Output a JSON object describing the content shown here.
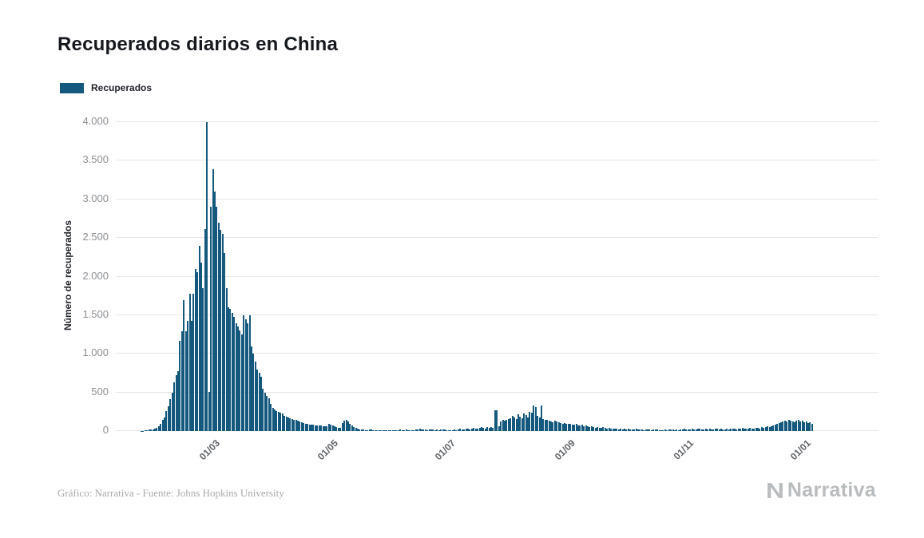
{
  "page": {
    "title": "Recuperados diarios en China",
    "footer_credit": "Gráfico: Narrativa - Fuente: Johns Hopkins University",
    "brand": "Narrativa"
  },
  "legend": {
    "label": "Recuperados",
    "color": "#14597d"
  },
  "chart_data": {
    "type": "bar",
    "title": "Recuperados diarios en China",
    "xlabel": "",
    "ylabel": "Número de recuperados",
    "ylim": [
      0,
      4000
    ],
    "grid": true,
    "legend_position": "top-left",
    "bar_color": "#14597d",
    "y_ticks": [
      {
        "value": 0,
        "label": "0"
      },
      {
        "value": 500,
        "label": "500"
      },
      {
        "value": 1000,
        "label": "1.000"
      },
      {
        "value": 1500,
        "label": "1.500"
      },
      {
        "value": 2000,
        "label": "2.000"
      },
      {
        "value": 2500,
        "label": "2.500"
      },
      {
        "value": 3000,
        "label": "3.000"
      },
      {
        "value": 3500,
        "label": "3.500"
      },
      {
        "value": 4000,
        "label": "4.000"
      }
    ],
    "x_ticks": [
      {
        "label": "01/03",
        "day_index": 39
      },
      {
        "label": "01/05",
        "day_index": 100
      },
      {
        "label": "01/07",
        "day_index": 161
      },
      {
        "label": "01/09",
        "day_index": 223
      },
      {
        "label": "01/11",
        "day_index": 284
      },
      {
        "label": "01/01",
        "day_index": 345
      }
    ],
    "series": [
      {
        "name": "Recuperados",
        "values": [
          0,
          2,
          5,
          10,
          10,
          20,
          25,
          25,
          30,
          40,
          60,
          90,
          150,
          180,
          260,
          320,
          410,
          500,
          630,
          720,
          780,
          1170,
          1290,
          1700,
          1290,
          1430,
          1780,
          1430,
          1780,
          2100,
          2060,
          2400,
          2180,
          1850,
          2620,
          4000,
          510,
          2900,
          3390,
          3100,
          2900,
          2700,
          2600,
          2550,
          2300,
          1850,
          1600,
          1580,
          1530,
          1480,
          1400,
          1350,
          1300,
          1250,
          1500,
          1450,
          1400,
          1500,
          1100,
          1000,
          900,
          800,
          750,
          700,
          550,
          500,
          450,
          420,
          350,
          300,
          280,
          260,
          250,
          240,
          230,
          200,
          190,
          180,
          170,
          160,
          150,
          140,
          130,
          120,
          110,
          100,
          95,
          90,
          85,
          80,
          80,
          75,
          75,
          70,
          70,
          65,
          65,
          60,
          90,
          85,
          70,
          60,
          50,
          45,
          40,
          100,
          130,
          150,
          120,
          90,
          70,
          50,
          40,
          30,
          25,
          20,
          20,
          15,
          15,
          20,
          20,
          15,
          15,
          10,
          10,
          10,
          10,
          15,
          10,
          10,
          10,
          10,
          15,
          10,
          10,
          20,
          15,
          10,
          20,
          15,
          10,
          10,
          15,
          20,
          25,
          30,
          20,
          25,
          20,
          15,
          20,
          25,
          20,
          15,
          20,
          15,
          20,
          25,
          20,
          15,
          10,
          15,
          10,
          20,
          15,
          25,
          30,
          20,
          25,
          35,
          30,
          25,
          30,
          40,
          35,
          30,
          45,
          50,
          40,
          35,
          50,
          40,
          50,
          45,
          270,
          265,
          60,
          120,
          140,
          130,
          150,
          160,
          170,
          200,
          180,
          160,
          220,
          190,
          170,
          230,
          210,
          180,
          250,
          240,
          330,
          310,
          200,
          180,
          330,
          160,
          140,
          150,
          130,
          120,
          110,
          130,
          120,
          110,
          100,
          90,
          100,
          90,
          95,
          90,
          85,
          80,
          90,
          75,
          70,
          80,
          65,
          70,
          60,
          55,
          60,
          50,
          45,
          55,
          40,
          45,
          50,
          40,
          35,
          40,
          35,
          30,
          35,
          30,
          25,
          30,
          25,
          30,
          25,
          30,
          25,
          20,
          25,
          30,
          20,
          25,
          20,
          15,
          20,
          25,
          20,
          15,
          20,
          25,
          20,
          15,
          10,
          15,
          20,
          15,
          20,
          25,
          20,
          15,
          20,
          15,
          20,
          25,
          30,
          20,
          25,
          20,
          30,
          25,
          20,
          30,
          35,
          25,
          20,
          30,
          25,
          30,
          20,
          25,
          35,
          30,
          25,
          30,
          25,
          20,
          30,
          25,
          30,
          35,
          30,
          25,
          30,
          35,
          40,
          30,
          35,
          30,
          40,
          35,
          30,
          45,
          40,
          35,
          50,
          45,
          55,
          60,
          50,
          65,
          70,
          80,
          90,
          100,
          110,
          120,
          130,
          120,
          140,
          130,
          120,
          110,
          130,
          140,
          120,
          130,
          110,
          120,
          100,
          110,
          90
        ]
      }
    ]
  }
}
